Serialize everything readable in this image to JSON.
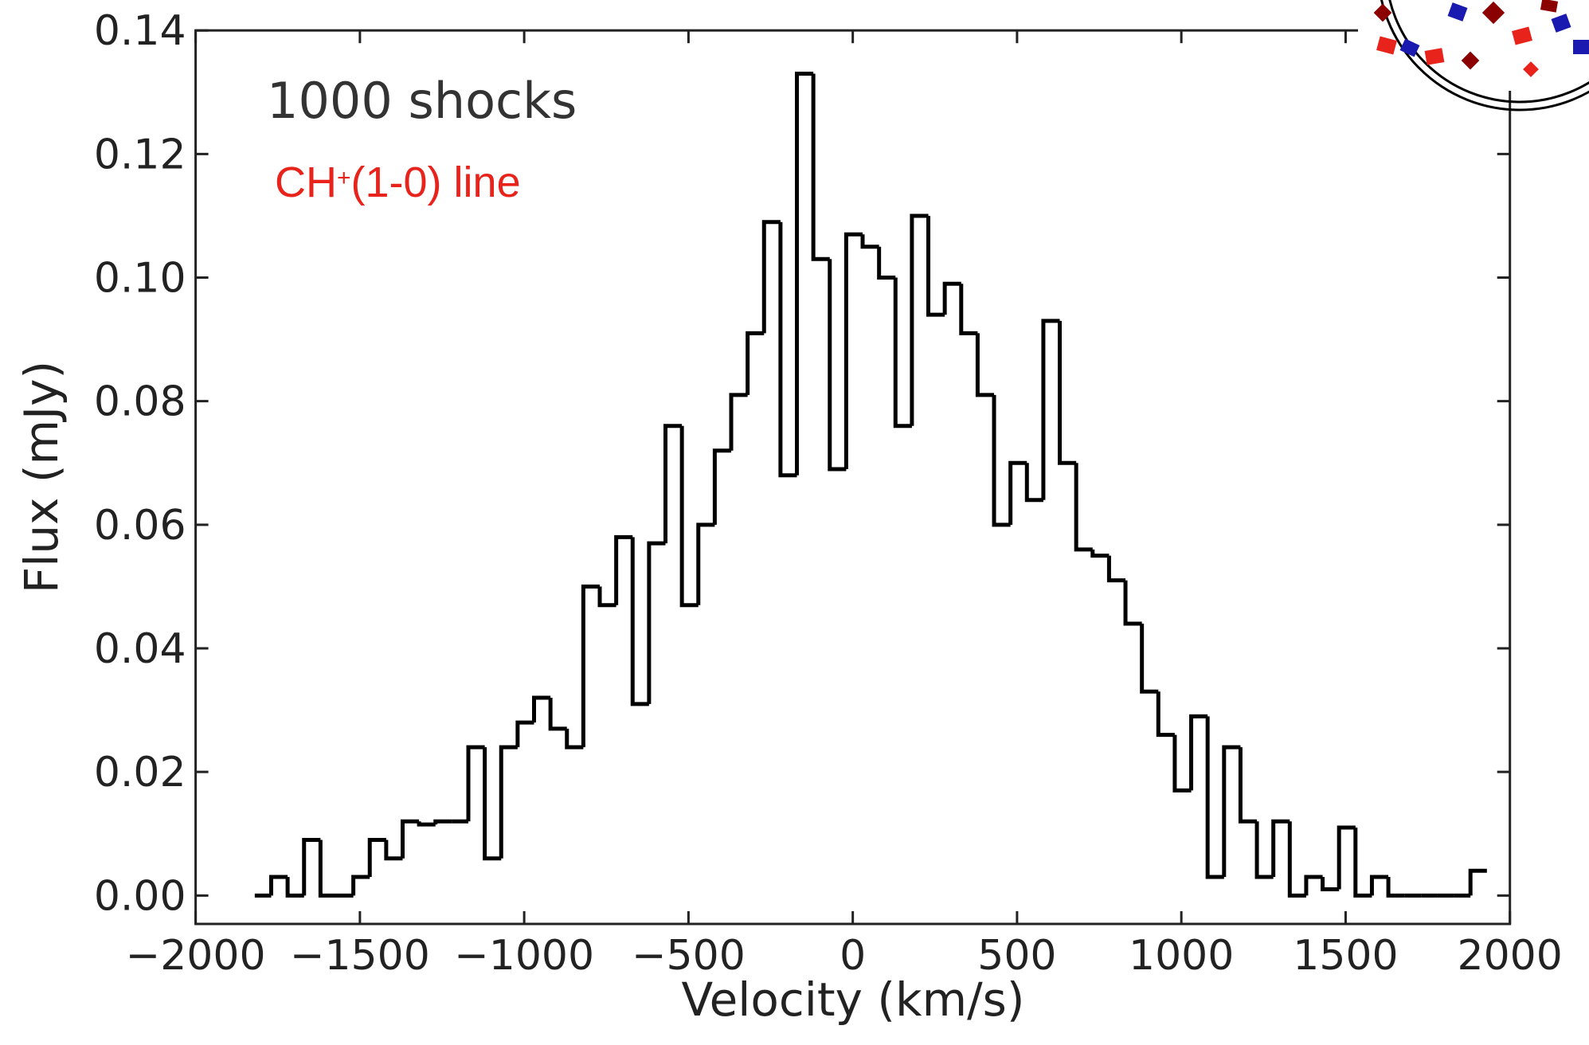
{
  "chart_data": {
    "type": "histogram",
    "x_label": "Velocity (km/s)",
    "y_label": "Flux (mJy)",
    "annotation": "1000 shocks",
    "annotation_line": [
      "CH",
      "+",
      "(1-0) line"
    ],
    "annotation_line_color": "#e8231c",
    "color": "#000000",
    "bins": [
      -1820,
      -1770,
      -1720,
      -1670,
      -1620,
      -1570,
      -1520,
      -1470,
      -1420,
      -1370,
      -1320,
      -1270,
      -1220,
      -1170,
      -1120,
      -1070,
      -1020,
      -970,
      -920,
      -870,
      -820,
      -770,
      -720,
      -670,
      -620,
      -570,
      -520,
      -470,
      -420,
      -370,
      -320,
      -270,
      -220,
      -170,
      -120,
      -70,
      -20,
      30,
      80,
      130,
      180,
      230,
      280,
      330,
      380,
      430,
      480,
      530,
      580,
      630,
      680,
      730,
      780,
      830,
      880,
      930,
      980,
      1030,
      1080,
      1130,
      1180,
      1230,
      1280,
      1330,
      1380,
      1430,
      1480,
      1530,
      1580,
      1630,
      1680,
      1730,
      1780,
      1830,
      1880,
      1930
    ],
    "values": [
      0,
      0.003,
      0,
      0.009,
      0,
      0,
      0.003,
      0.009,
      0.006,
      0.012,
      0.0115,
      0.012,
      0.012,
      0.024,
      0.006,
      0.024,
      0.028,
      0.032,
      0.027,
      0.024,
      0.05,
      0.047,
      0.058,
      0.031,
      0.057,
      0.076,
      0.047,
      0.06,
      0.072,
      0.081,
      0.091,
      0.109,
      0.068,
      0.133,
      0.103,
      0.069,
      0.107,
      0.105,
      0.1,
      0.076,
      0.11,
      0.094,
      0.099,
      0.091,
      0.081,
      0.06,
      0.07,
      0.064,
      0.093,
      0.07,
      0.056,
      0.055,
      0.051,
      0.044,
      0.033,
      0.026,
      0.017,
      0.029,
      0.003,
      0.024,
      0.012,
      0.003,
      0.012,
      0,
      0.003,
      0.001,
      0.011,
      0,
      0.003,
      0,
      0,
      0,
      0,
      0,
      0.004
    ],
    "xlim": [
      -2000,
      2000
    ],
    "xticks": [
      {
        "value": -2000,
        "label": "−2000"
      },
      {
        "value": -1500,
        "label": "−1500"
      },
      {
        "value": -1000,
        "label": "−1000"
      },
      {
        "value": -500,
        "label": "−500"
      },
      0,
      500,
      1000,
      1500,
      2000
    ],
    "ylim": [
      -0.0046,
      0.14
    ],
    "yticks": [
      {
        "value": 0,
        "label": "0.00"
      },
      0.02,
      0.04,
      0.06,
      0.08,
      {
        "value": 0.1,
        "label": "0.10"
      },
      0.12,
      0.14
    ]
  }
}
